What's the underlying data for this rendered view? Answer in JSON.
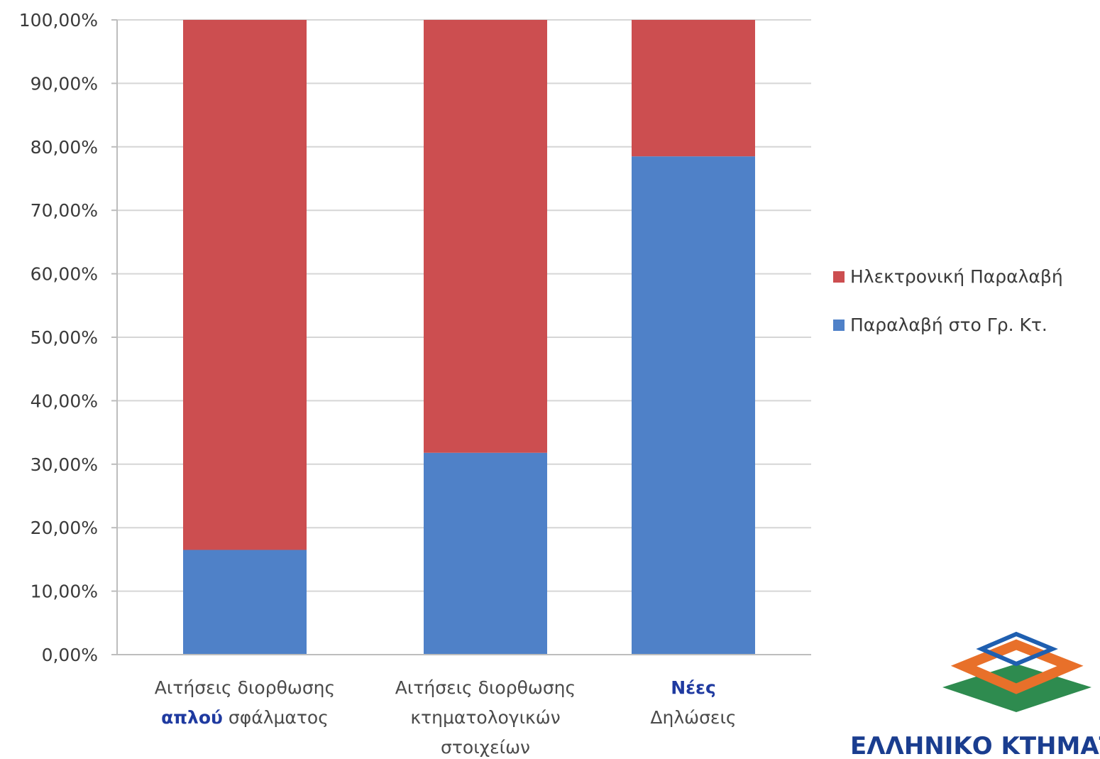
{
  "chart_data": {
    "type": "bar",
    "stacked": true,
    "categories": [
      [
        "Αιτήσεις διορθωσης",
        "απλού σφάλματος"
      ],
      [
        "Αιτήσεις διορθωσης",
        "κτηματολογικών",
        "στοιχείων"
      ],
      [
        "Νέες",
        "Δηλώσεις"
      ]
    ],
    "series": [
      {
        "name": "Παραλαβή στο Γρ. Κτ.",
        "color": "#4f81c8",
        "values": [
          16.5,
          31.8,
          78.5
        ]
      },
      {
        "name": "Ηλεκτρονική Παραλαβή",
        "color": "#cc4e50",
        "values": [
          83.5,
          68.2,
          21.5
        ]
      }
    ],
    "yticks": [
      "0,00%",
      "10,00%",
      "20,00%",
      "30,00%",
      "40,00%",
      "50,00%",
      "60,00%",
      "70,00%",
      "80,00%",
      "90,00%",
      "100,00%"
    ],
    "ylim": [
      0,
      100
    ],
    "grid": true,
    "legend_position": "right",
    "legend_order": [
      "Ηλεκτρονική Παραλαβή",
      "Παραλαβή στο Γρ. Κτ."
    ],
    "highlighted_words": [
      "απλού",
      "Νέες"
    ],
    "highlight_color": "#1f3aa0"
  },
  "logo": {
    "text": "ΕΛΛΗΝΙΚΟ ΚΤΗΜΑΤΟΛΟΓΙΟ",
    "colors": {
      "blue": "#1f5fb0",
      "orange": "#e8702a",
      "green": "#2e8b4f",
      "text": "#1a3d8f"
    }
  }
}
